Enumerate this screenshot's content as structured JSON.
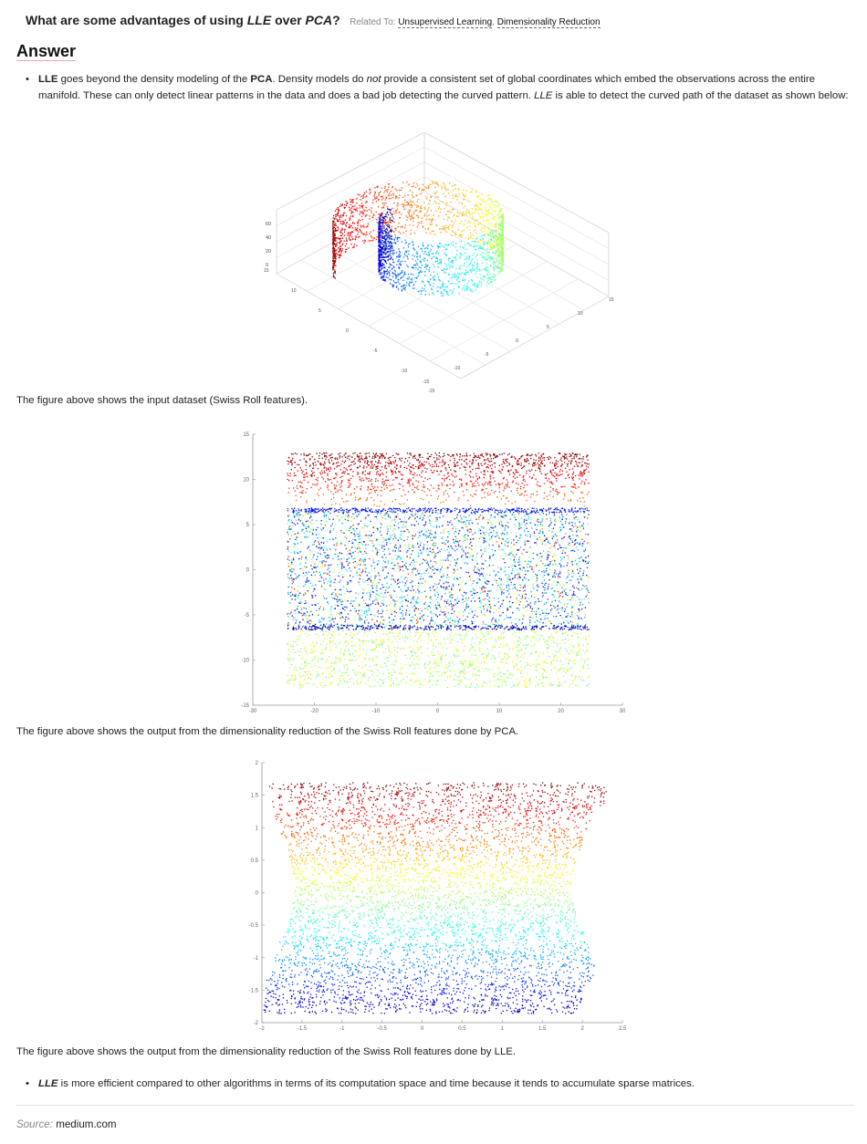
{
  "question": {
    "prefix": "What are some advantages of using ",
    "lle": "LLE",
    "mid": " over ",
    "pca": "PCA",
    "suffix": "?",
    "related_label": "Related To:",
    "related_links": [
      "Unsupervised Learning",
      "Dimensionality Reduction"
    ]
  },
  "answer_heading": "Answer",
  "bullet1": {
    "lle": "LLE",
    "t1": " goes beyond the density modeling of the ",
    "pca": "PCA",
    "t2": ". Density models do ",
    "not": "not",
    "t3": " provide a consistent set of global coordinates which embed the observations across the entire manifold. These can only detect linear patterns in the data and does a bad job detecting the curved pattern. ",
    "lle2": "LLE",
    "t4": " is able to detect the curved path of the dataset as shown below:"
  },
  "captions": {
    "fig1": "The figure above shows the input dataset (Swiss Roll features).",
    "fig2": "The figure above shows the output from the dimensionality reduction of the Swiss Roll features done by PCA.",
    "fig3": "The figure above shows the output from the dimensionality reduction of the Swiss Roll features done by LLE."
  },
  "bullet2": {
    "lle": "LLE",
    "text": " is more efficient compared to other algorithms in terms of its computation space and time because it tends to accumulate sparse matrices."
  },
  "source": {
    "label": "Source:",
    "value": "medium.com"
  },
  "chart_data": [
    {
      "type": "scatter",
      "title": "",
      "dimensions": 3,
      "z_ticks": [
        "0",
        "20",
        "40",
        "60"
      ],
      "axis_ticks_left": [
        "15",
        "10",
        "5",
        "0",
        "-5",
        "-10",
        "-15"
      ],
      "axis_ticks_right": [
        "-15",
        "-10",
        "-5",
        "0",
        "5",
        "10",
        "15"
      ],
      "colormap": "jet"
    },
    {
      "type": "scatter",
      "title": "",
      "xlim": [
        -30,
        30
      ],
      "ylim": [
        -15,
        15
      ],
      "x_ticks": [
        "-30",
        "-20",
        "-10",
        "0",
        "10",
        "20",
        "30"
      ],
      "y_ticks": [
        "15",
        "10",
        "5",
        "0",
        "-5",
        "-10",
        "-15"
      ],
      "bands": [
        {
          "y": [
            7,
            13
          ],
          "color": "red"
        },
        {
          "y": [
            -6.5,
            6.5
          ],
          "color": "mixed"
        },
        {
          "y": [
            -13,
            -6.5
          ],
          "color": "green"
        }
      ],
      "colormap": "jet"
    },
    {
      "type": "scatter",
      "title": "",
      "xlim": [
        -2,
        2.5
      ],
      "ylim": [
        -2,
        2
      ],
      "x_ticks": [
        "-2",
        "-1.5",
        "-1",
        "-0.5",
        "0",
        "0.5",
        "1",
        "1.5",
        "2",
        "2.5"
      ],
      "y_ticks": [
        "2",
        "1.5",
        "1",
        "0.5",
        "0",
        "-0.5",
        "-1",
        "-1.5",
        "-2"
      ],
      "colormap": "jet"
    }
  ]
}
